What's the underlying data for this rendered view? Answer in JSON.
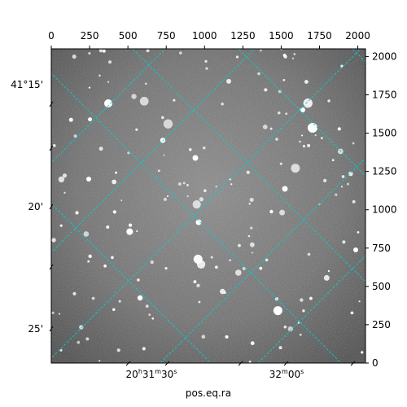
{
  "chart_data": {
    "type": "image",
    "xlabel": "pos.eq.ra",
    "ylabel": "",
    "pixel_axis_top": {
      "ticks": [
        0,
        250,
        500,
        750,
        1000,
        1250,
        1500,
        1750,
        2000
      ],
      "tick_labels": [
        "0",
        "250",
        "500",
        "750",
        "1000",
        "1250",
        "1500",
        "1750",
        "2000"
      ],
      "range": [
        0,
        2050
      ]
    },
    "pixel_axis_right": {
      "ticks": [
        0,
        250,
        500,
        750,
        1000,
        1250,
        1500,
        1750,
        2000
      ],
      "tick_labels": [
        "0",
        "250",
        "500",
        "750",
        "1000",
        "1250",
        "1500",
        "1750",
        "2000"
      ],
      "range": [
        0,
        2050
      ]
    },
    "dec_axis_left": {
      "tick_labels": [
        "41°15'",
        "20'",
        "25'"
      ]
    },
    "ra_axis_bottom": {
      "tick_labels": [
        {
          "h": "20",
          "m": "31",
          "s": "30"
        },
        {
          "h": "",
          "m": "32",
          "s": "00"
        }
      ]
    },
    "grid": true,
    "grid_color": "#00d0d0",
    "background": "grayscale star field"
  }
}
